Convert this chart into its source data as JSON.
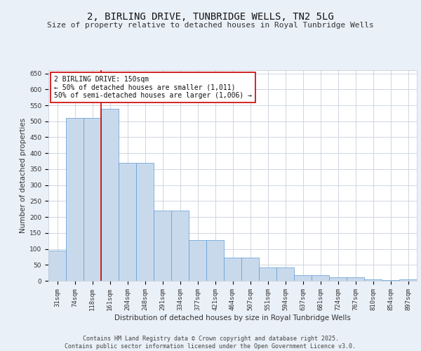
{
  "title": "2, BIRLING DRIVE, TUNBRIDGE WELLS, TN2 5LG",
  "subtitle": "Size of property relative to detached houses in Royal Tunbridge Wells",
  "xlabel": "Distribution of detached houses by size in Royal Tunbridge Wells",
  "ylabel": "Number of detached properties",
  "categories": [
    "31sqm",
    "74sqm",
    "118sqm",
    "161sqm",
    "204sqm",
    "248sqm",
    "291sqm",
    "334sqm",
    "377sqm",
    "421sqm",
    "464sqm",
    "507sqm",
    "551sqm",
    "594sqm",
    "637sqm",
    "681sqm",
    "724sqm",
    "767sqm",
    "810sqm",
    "854sqm",
    "897sqm"
  ],
  "values": [
    95,
    510,
    510,
    540,
    370,
    370,
    220,
    220,
    128,
    128,
    72,
    72,
    42,
    42,
    18,
    18,
    10,
    10,
    5,
    2,
    5
  ],
  "bar_color": "#c9d9ec",
  "bar_edge_color": "#5b9bd5",
  "vline_color": "#cc0000",
  "vline_x": 2.5,
  "annotation_text": "2 BIRLING DRIVE: 150sqm\n← 50% of detached houses are smaller (1,011)\n50% of semi-detached houses are larger (1,006) →",
  "annotation_box_color": "#ffffff",
  "annotation_box_edge": "#cc0000",
  "ylim": [
    0,
    660
  ],
  "yticks": [
    0,
    50,
    100,
    150,
    200,
    250,
    300,
    350,
    400,
    450,
    500,
    550,
    600,
    650
  ],
  "footer": "Contains HM Land Registry data © Crown copyright and database right 2025.\nContains public sector information licensed under the Open Government Licence v3.0.",
  "bg_color": "#eaf0f8",
  "plot_bg_color": "#ffffff",
  "grid_color": "#c8d0dc",
  "title_fontsize": 10,
  "subtitle_fontsize": 8,
  "axis_label_fontsize": 7.5,
  "tick_fontsize": 6.5,
  "annotation_fontsize": 7,
  "footer_fontsize": 6
}
